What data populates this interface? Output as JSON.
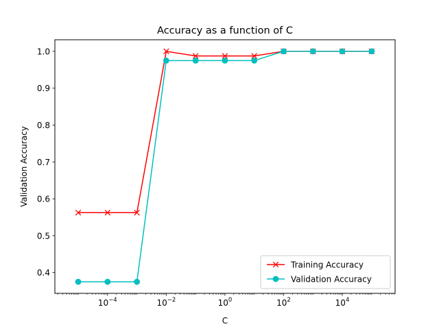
{
  "chart_data": {
    "type": "line",
    "title": "Accuracy as a function of C",
    "xlabel": "C",
    "ylabel": "Validation Accuracy",
    "xscale": "log",
    "x": [
      1e-05,
      0.0001,
      0.001,
      0.01,
      0.1,
      1,
      10,
      100,
      1000,
      10000,
      100000
    ],
    "xlim": [
      1.6e-06,
      630000.0
    ],
    "ylim": [
      0.3436,
      1.0314
    ],
    "xticks": [
      {
        "value": 0.0001,
        "base": "10",
        "exp": "−4"
      },
      {
        "value": 0.01,
        "base": "10",
        "exp": "−2"
      },
      {
        "value": 1,
        "base": "10",
        "exp": "0"
      },
      {
        "value": 100,
        "base": "10",
        "exp": "2"
      },
      {
        "value": 10000,
        "base": "10",
        "exp": "4"
      }
    ],
    "yticks": [
      0.4,
      0.5,
      0.6,
      0.7,
      0.8,
      0.9,
      1.0
    ],
    "ytick_labels": [
      "0.4",
      "0.5",
      "0.6",
      "0.7",
      "0.8",
      "0.9",
      "1.0"
    ],
    "grid": false,
    "legend_position": "bottom-right",
    "series": [
      {
        "name": "Training Accuracy",
        "color": "#ff0000",
        "marker": "x",
        "values": [
          0.5625,
          0.5625,
          0.5625,
          1.0,
          0.9875,
          0.9875,
          0.9875,
          1.0,
          1.0,
          1.0,
          1.0
        ]
      },
      {
        "name": "Validation Accuracy",
        "color": "#00bfbf",
        "marker": "o",
        "values": [
          0.375,
          0.375,
          0.375,
          0.975,
          0.975,
          0.975,
          0.975,
          1.0,
          1.0,
          1.0,
          1.0
        ]
      }
    ]
  }
}
